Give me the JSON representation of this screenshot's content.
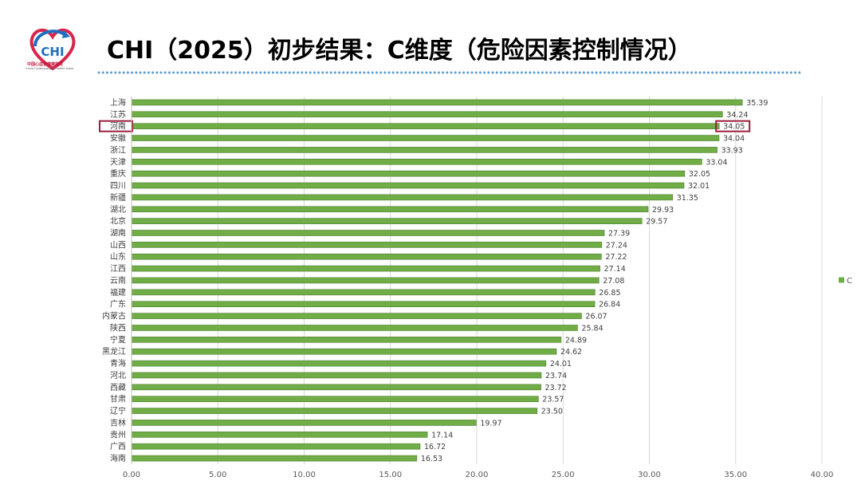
{
  "header": {
    "title": "CHI（2025）初步结果：C维度（危险因素控制情况）",
    "logo_text": "CHI",
    "logo_caption": "中国心血管健康指数",
    "logo_subcaption": "China Cardiovascular Health Index"
  },
  "colors": {
    "bar": "#70ad47",
    "bar_stroke": "#4e7d31",
    "highlight": "#9b1c3c",
    "grid": "#d9d9d9",
    "dots": "#5b9bd5"
  },
  "chart_data": {
    "type": "bar",
    "orientation": "horizontal",
    "categories": [
      "上海",
      "江苏",
      "河南",
      "安徽",
      "浙江",
      "天津",
      "重庆",
      "四川",
      "新疆",
      "湖北",
      "北京",
      "湖南",
      "山西",
      "山东",
      "江西",
      "云南",
      "福建",
      "广东",
      "内蒙古",
      "陕西",
      "宁夏",
      "黑龙江",
      "青海",
      "河北",
      "西藏",
      "甘肃",
      "辽宁",
      "吉林",
      "贵州",
      "广西",
      "海南"
    ],
    "series": [
      {
        "name": "C",
        "values": [
          35.39,
          34.24,
          34.05,
          34.04,
          33.93,
          33.04,
          32.05,
          32.01,
          31.35,
          29.93,
          29.57,
          27.39,
          27.24,
          27.22,
          27.14,
          27.08,
          26.85,
          26.84,
          26.07,
          25.84,
          24.89,
          24.62,
          24.01,
          23.74,
          23.72,
          23.57,
          23.5,
          19.97,
          17.14,
          16.72,
          16.53
        ],
        "labels": [
          "35.39",
          "34.24",
          "34.05",
          "34.04",
          "33.93",
          "33.04",
          "32.05",
          "32.01",
          "31.35",
          "29.93",
          "29.57",
          "27.39",
          "27.24",
          "27.22",
          "27.14",
          "27.08",
          "26.85",
          "26.84",
          "26.07",
          "25.84",
          "24.89",
          "24.62",
          "24.01",
          "23.74",
          "23.72",
          "23.57",
          "23.50",
          "19.97",
          "17.14",
          "16.72",
          "16.53"
        ]
      }
    ],
    "xlim": [
      0,
      40
    ],
    "xticks": [
      0,
      5,
      10,
      15,
      20,
      25,
      30,
      35,
      40
    ],
    "xtick_labels": [
      "0.00",
      "5.00",
      "10.00",
      "15.00",
      "20.00",
      "25.00",
      "30.00",
      "35.00",
      "40.00"
    ],
    "grid": "vertical",
    "legend": {
      "position": "right",
      "entries": [
        "C"
      ]
    },
    "highlight_category": "河南"
  }
}
